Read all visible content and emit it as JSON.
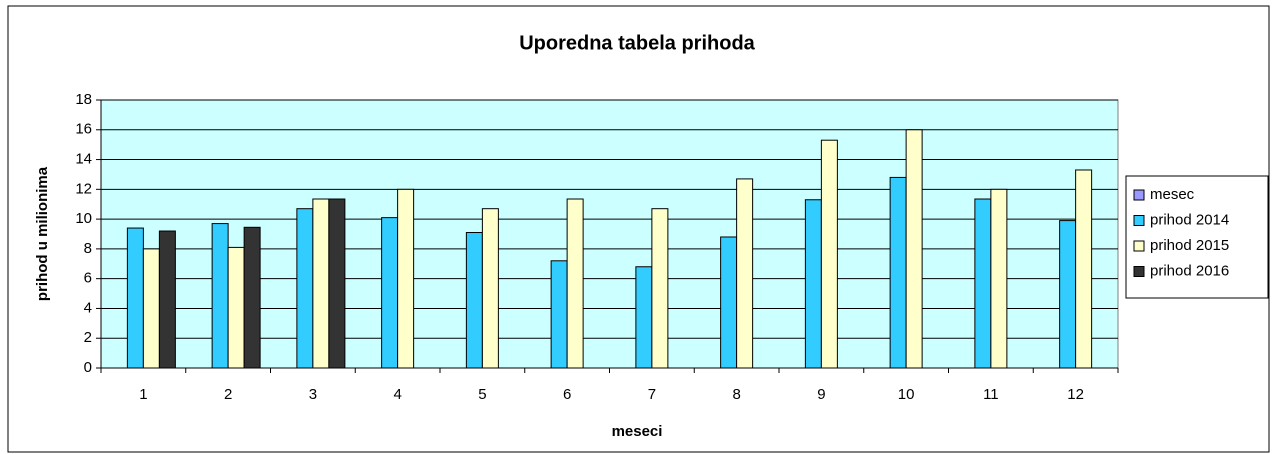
{
  "chart_data": {
    "type": "bar",
    "title": "Uporedna tabela prihoda",
    "x_label": "meseci",
    "y_label": "prihod u milionima",
    "categories": [
      "1",
      "2",
      "3",
      "4",
      "5",
      "6",
      "7",
      "8",
      "9",
      "10",
      "11",
      "12"
    ],
    "series": [
      {
        "name": "mesec",
        "color": "#9999ff",
        "values": [
          null,
          null,
          null,
          null,
          null,
          null,
          null,
          null,
          null,
          null,
          null,
          null
        ]
      },
      {
        "name": "prihod 2014",
        "color": "#33ccff",
        "values": [
          9.4,
          9.7,
          10.7,
          10.1,
          9.1,
          7.2,
          6.8,
          8.8,
          11.3,
          12.8,
          11.35,
          9.9
        ]
      },
      {
        "name": "prihod 2015",
        "color": "#ffffcc",
        "values": [
          8.0,
          8.1,
          11.35,
          12.0,
          10.7,
          11.35,
          10.7,
          12.7,
          15.3,
          16.0,
          12.0,
          13.3
        ]
      },
      {
        "name": "prihod 2016",
        "color": "#333333",
        "values": [
          9.2,
          9.45,
          11.35,
          null,
          null,
          null,
          null,
          null,
          null,
          null,
          null,
          null
        ]
      }
    ],
    "ylim": [
      0,
      18
    ],
    "yticks": [
      0,
      2,
      4,
      6,
      8,
      10,
      12,
      14,
      16,
      18
    ],
    "grid": true,
    "legend": "right"
  }
}
